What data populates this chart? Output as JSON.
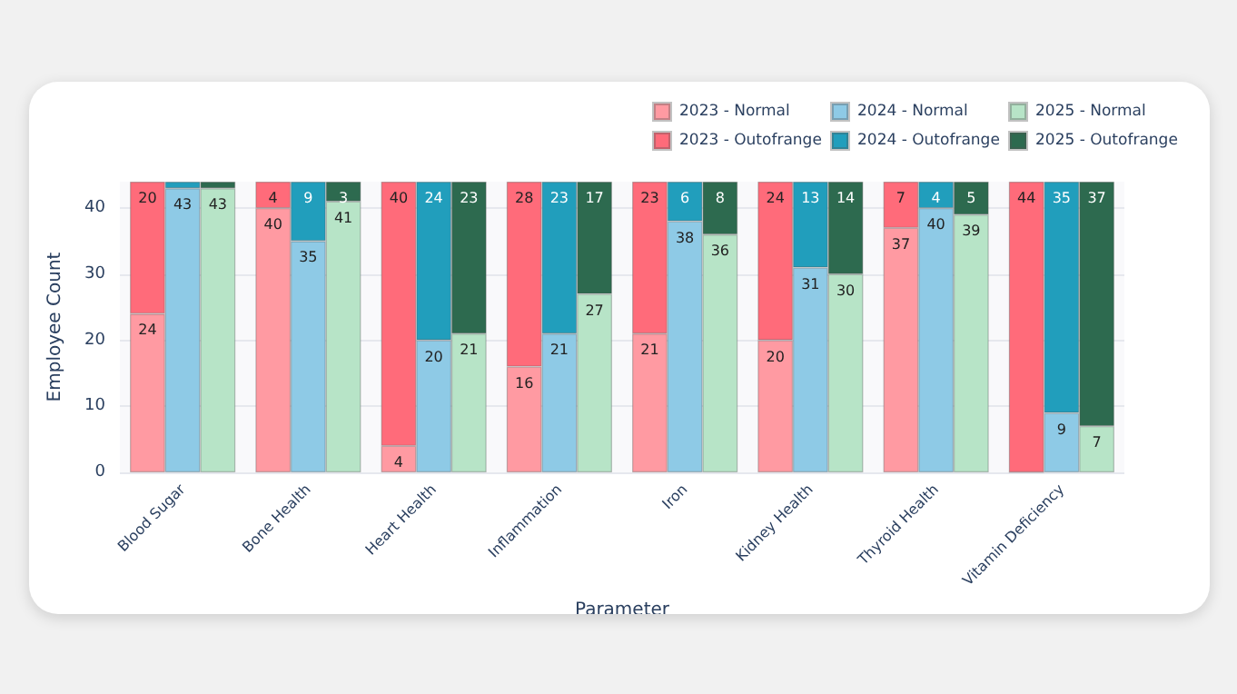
{
  "chart_data": [
    {
      "type": "bar",
      "stacked": true,
      "categories": [
        null,
        null,
        null,
        null,
        null,
        null,
        null,
        null
      ],
      "ylim": [
        0,
        44
      ],
      "yticks": [
        0,
        10,
        20,
        30,
        40
      ],
      "tick_labels": false,
      "legend": "top right",
      "series": [
        {
          "name": "2023 - Normal",
          "color": "#ff9aa2",
          "values": [
            24,
            40,
            4,
            16,
            21,
            20,
            37,
            0
          ],
          "value_labels": [
            "24",
            "40",
            "4",
            "16",
            "21",
            "20",
            "37",
            null
          ]
        },
        {
          "name": "2023 - Outofrange",
          "color": "#ff6b7a",
          "values": [
            20,
            4,
            40,
            28,
            23,
            24,
            7,
            44
          ],
          "value_labels": [
            "20",
            "4",
            "40",
            "28",
            "23",
            "24",
            "7",
            "44"
          ]
        }
      ]
    },
    {
      "type": "bar",
      "stacked": true,
      "xlabel": "Parameter",
      "ylabel": "Employee Count",
      "categories": [
        "Blood Sugar",
        "Bone Health",
        "Heart Health",
        "Inflammation",
        "Iron",
        "Kidney Health",
        "Thyroid Health",
        "Vitamin Deficiency"
      ],
      "ylim": [
        0,
        44
      ],
      "yticks": [
        0,
        10,
        20,
        30,
        40
      ],
      "grid": "y",
      "legend": "top right",
      "series": [
        {
          "name": "2024 - Normal",
          "color": "#8ecae6",
          "values": [
            43,
            35,
            20,
            21,
            38,
            31,
            40,
            9
          ],
          "value_labels": [
            "43",
            "35",
            "20",
            "21",
            "38",
            "31",
            "40",
            "9"
          ]
        },
        {
          "name": "2024 - Outofrange",
          "color": "#219ebc",
          "values": [
            1,
            9,
            24,
            23,
            6,
            13,
            4,
            35
          ],
          "value_labels": [
            null,
            "9",
            "24",
            "23",
            "6",
            "13",
            "4",
            "35"
          ]
        }
      ]
    },
    {
      "type": "bar",
      "stacked": true,
      "categories": [
        null,
        null,
        null,
        null,
        null,
        null,
        null,
        null
      ],
      "ylim": [
        0,
        44
      ],
      "yticks": [
        0,
        10,
        20,
        30,
        40
      ],
      "tick_labels": false,
      "legend": "top right",
      "series": [
        {
          "name": "2025 - Normal",
          "color": "#b7e4c7",
          "values": [
            43,
            41,
            21,
            27,
            36,
            30,
            39,
            7
          ],
          "value_labels": [
            "43",
            "41",
            "21",
            "27",
            "36",
            "30",
            "39",
            "7"
          ]
        },
        {
          "name": "2025 - Outofrange",
          "color": "#2d6a4f",
          "values": [
            1,
            3,
            23,
            17,
            8,
            14,
            5,
            37
          ],
          "value_labels": [
            null,
            "3",
            "23",
            "17",
            "8",
            "14",
            "5",
            "37"
          ]
        }
      ]
    }
  ]
}
